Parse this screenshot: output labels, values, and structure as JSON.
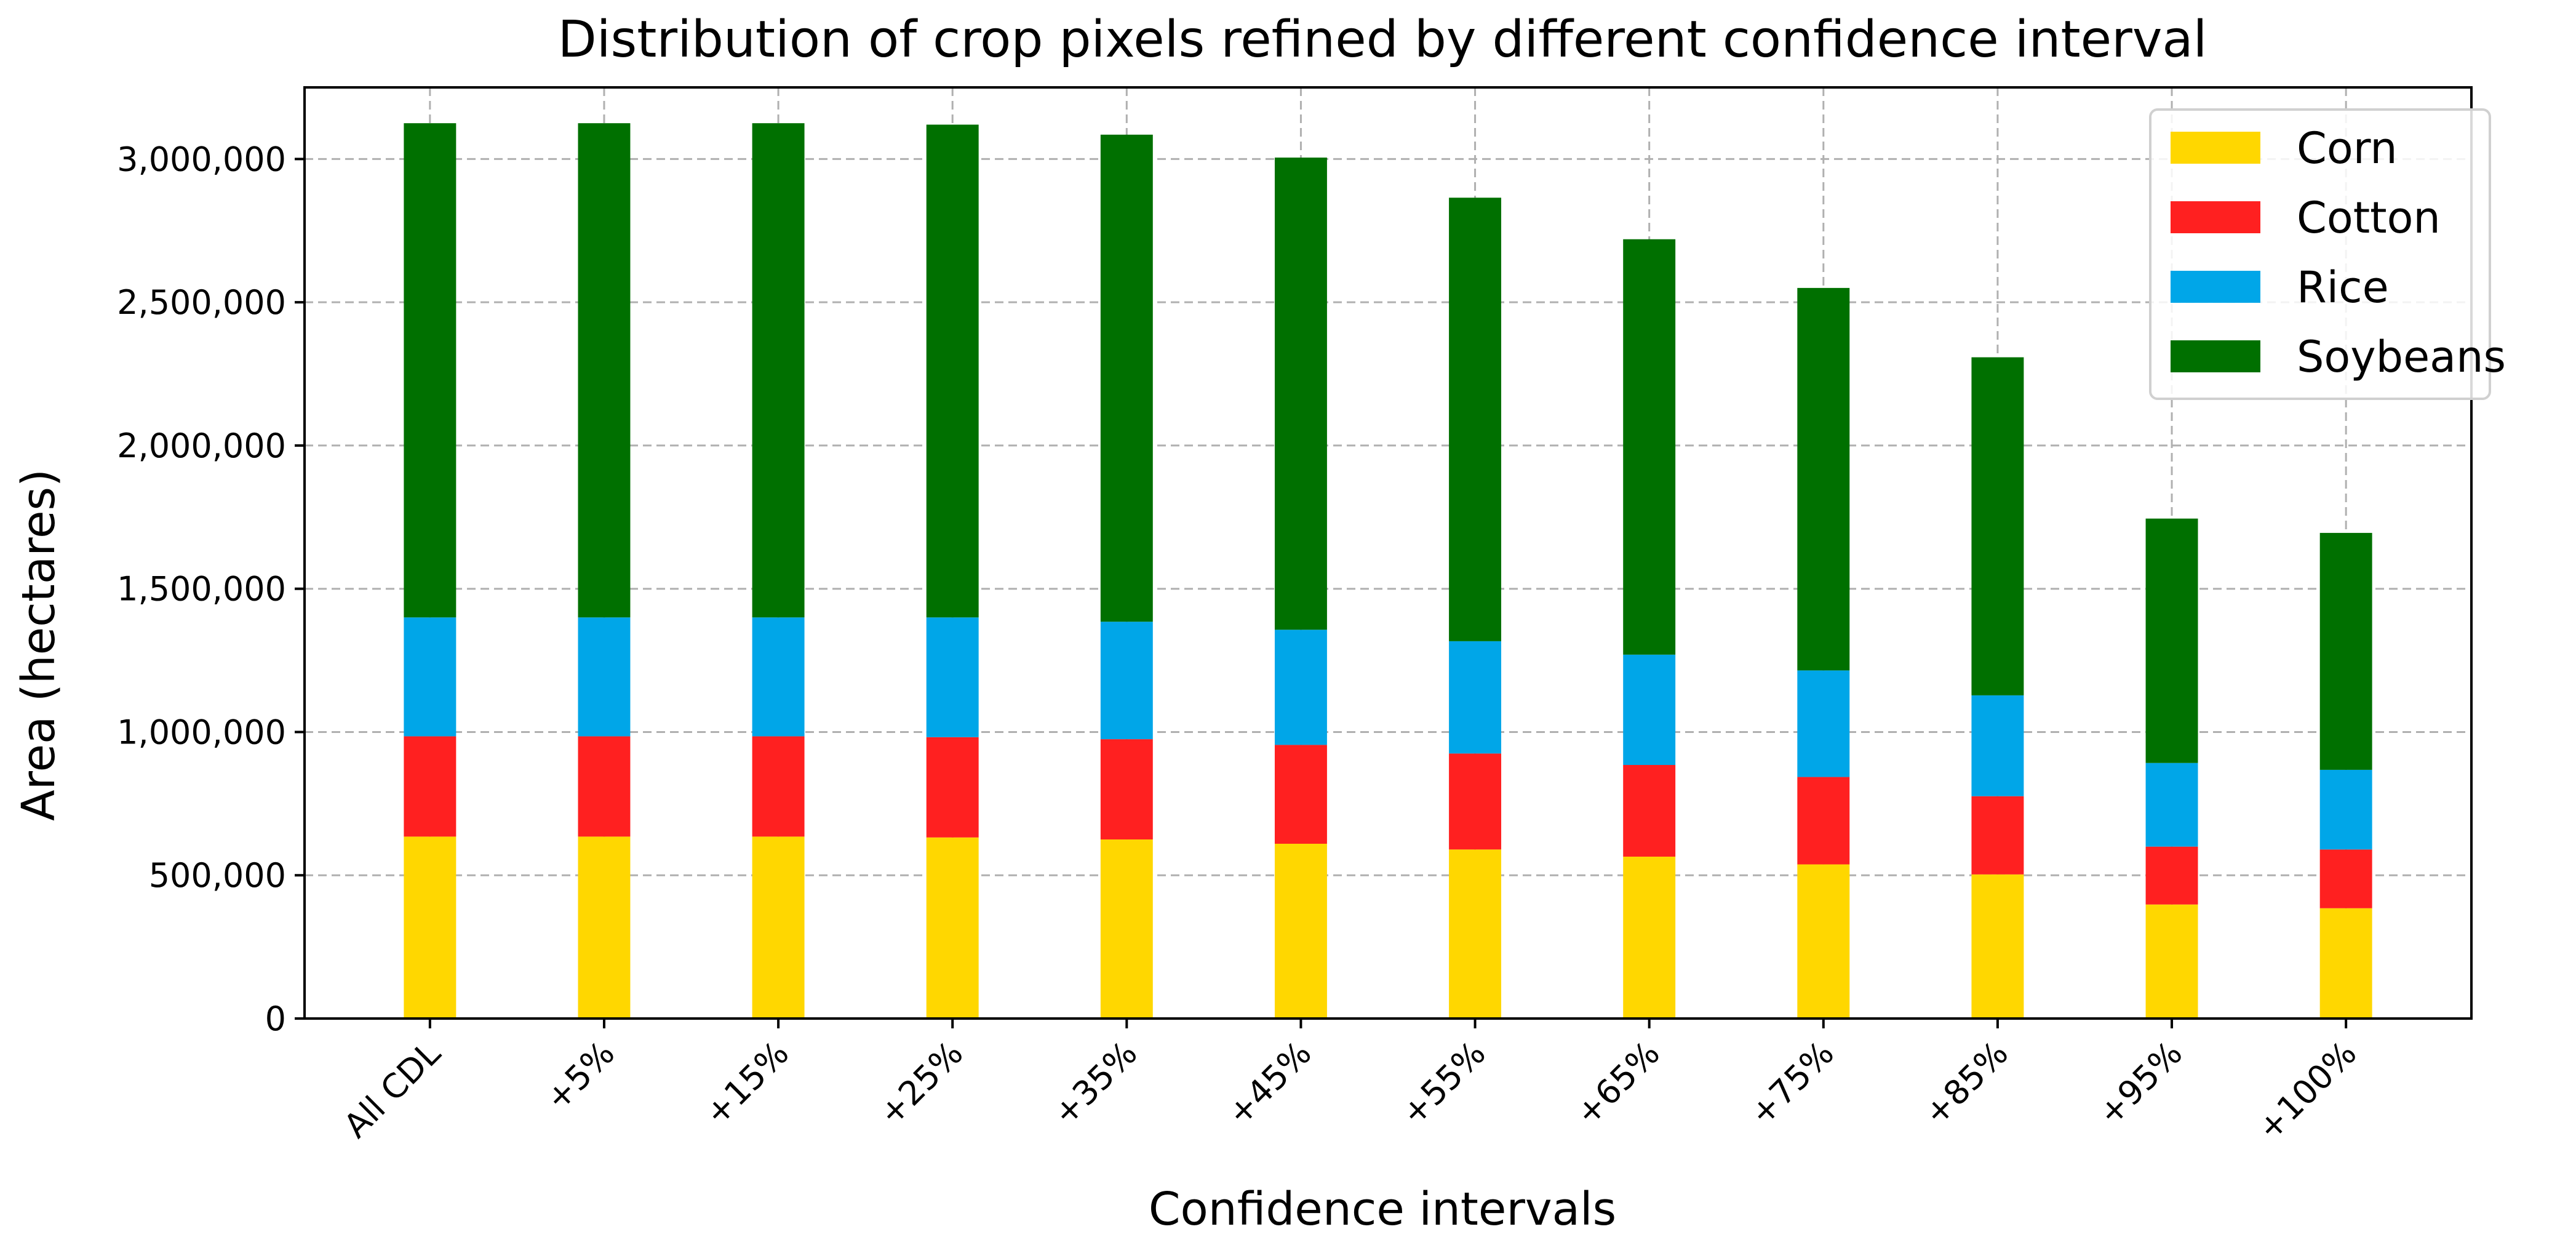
{
  "chart_data": {
    "type": "bar",
    "stacked": true,
    "title": "Distribution of crop pixels refined by different confidence interval",
    "xlabel": "Confidence intervals",
    "ylabel": "Area (hectares)",
    "categories": [
      "All CDL",
      "+5%",
      "+15%",
      "+25%",
      "+35%",
      "+45%",
      "+55%",
      "+65%",
      "+75%",
      "+85%",
      "+95%",
      "+100%"
    ],
    "ylim": [
      0,
      3250000
    ],
    "yticks": [
      0,
      500000,
      1000000,
      1500000,
      2000000,
      2500000,
      3000000
    ],
    "ytick_labels": [
      "0",
      "500,000",
      "1,000,000",
      "1,500,000",
      "2,000,000",
      "2,500,000",
      "3,000,000"
    ],
    "grid": true,
    "legend_position": "top-right",
    "series": [
      {
        "name": "Corn",
        "color": "#ffd700",
        "values": [
          635000,
          635000,
          635000,
          632000,
          625000,
          610000,
          590000,
          565000,
          538000,
          503000,
          398000,
          385000
        ]
      },
      {
        "name": "Cotton",
        "color": "#ff2020",
        "values": [
          350000,
          350000,
          350000,
          350000,
          350000,
          345000,
          335000,
          320000,
          305000,
          273000,
          202000,
          205000
        ]
      },
      {
        "name": "Rice",
        "color": "#00a6e8",
        "values": [
          415000,
          415000,
          415000,
          418000,
          410000,
          402000,
          392000,
          385000,
          372000,
          352000,
          292000,
          278000
        ]
      },
      {
        "name": "Soybeans",
        "color": "#007000",
        "values": [
          1725000,
          1725000,
          1725000,
          1720000,
          1700000,
          1648000,
          1548000,
          1450000,
          1335000,
          1180000,
          853000,
          827000
        ]
      }
    ]
  }
}
